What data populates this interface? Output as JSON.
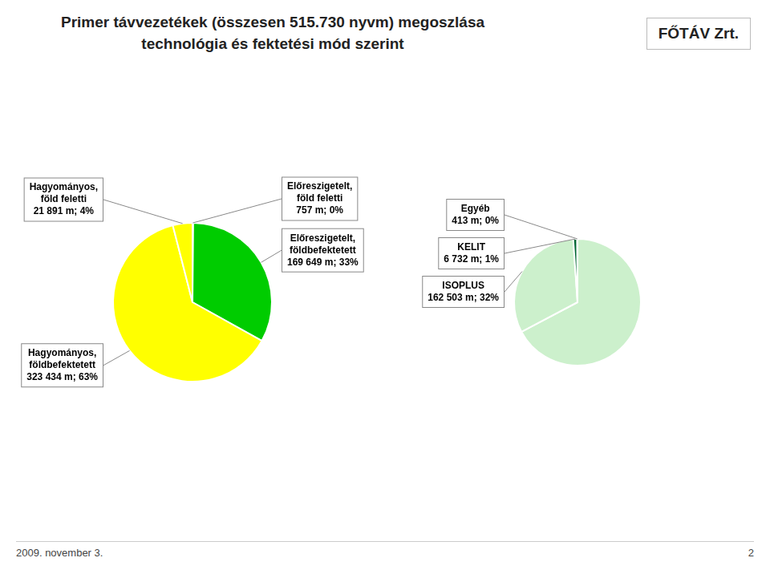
{
  "chart_data": [
    {
      "type": "pie",
      "title": [
        "Primer távvezetékek (összesen 515.730 nyvm) megoszlása",
        "technológia és fektetési mód szerint"
      ],
      "values": [
        0.147,
        33,
        63,
        4
      ],
      "colors": [
        "#0000cc",
        "#00cc00",
        "#ffff00",
        "#ffff00"
      ],
      "data_labels": true,
      "value_labels": [
        "Előreszigetelt,\nföld feletti\n757 m; 0%",
        "Előreszigetelt,\nföldbefektetett\n169 649 m; 33%",
        "Hagyományos,\nföldbefektetett\n323 434 m; 63%",
        "Hagyományos,\nföld feletti\n21 891 m; 4%"
      ],
      "annotations": [
        "FŐTÁV Zrt.",
        "2009. november 3.",
        "2"
      ]
    },
    {
      "type": "pie",
      "values": [
        67.92,
        32,
        1,
        0.08
      ],
      "colors": [
        "#ccf0cc",
        "#ccf0cc",
        "#006633",
        "#ccf0cc"
      ],
      "data_labels": true,
      "value_labels": [
        null,
        "ISOPLUS\n162 503 m; 32%",
        "KELIT\n6 732 m; 1%",
        "Egyéb\n413 m; 0%"
      ]
    }
  ]
}
